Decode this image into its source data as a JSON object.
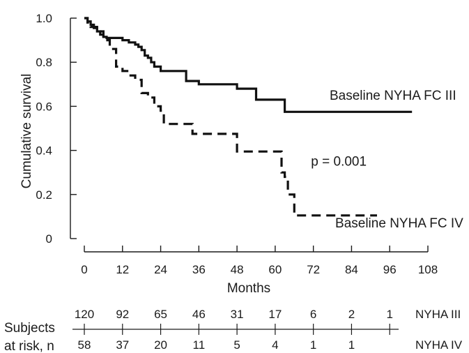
{
  "chart_data": {
    "type": "line",
    "subtype": "kaplan-meier-step",
    "title": "",
    "xlabel": "Months",
    "ylabel": "Cumulative survival",
    "xlim": [
      0,
      108
    ],
    "ylim": [
      0,
      1.0
    ],
    "xticks": [
      "0",
      "12",
      "24",
      "36",
      "48",
      "60",
      "72",
      "84",
      "96",
      "108"
    ],
    "yticks": [
      "0",
      "0.2",
      "0.4",
      "0.6",
      "0.8",
      "1.0"
    ],
    "grid": false,
    "legend": "none",
    "series": [
      {
        "name": "Baseline NYHA FC III",
        "style": "solid",
        "color": "#111111",
        "x": [
          0,
          1,
          2,
          3,
          4,
          5,
          6,
          7,
          12,
          14,
          16,
          17,
          18,
          19,
          20,
          21,
          22,
          24,
          32,
          36,
          42,
          48,
          54,
          63,
          103
        ],
        "y": [
          1.0,
          0.985,
          0.97,
          0.955,
          0.94,
          0.925,
          0.915,
          0.91,
          0.9,
          0.89,
          0.88,
          0.87,
          0.855,
          0.83,
          0.82,
          0.8,
          0.78,
          0.76,
          0.715,
          0.7,
          0.7,
          0.68,
          0.63,
          0.575,
          0.575
        ]
      },
      {
        "name": "Baseline NYHA FC IV",
        "style": "dashed",
        "color": "#111111",
        "x": [
          0,
          1,
          2,
          4,
          6,
          8,
          10,
          12,
          14,
          16,
          18,
          20,
          22,
          24,
          25,
          30,
          34,
          48,
          50,
          62,
          63,
          64,
          66,
          92
        ],
        "y": [
          1.0,
          0.98,
          0.96,
          0.94,
          0.9,
          0.86,
          0.78,
          0.76,
          0.74,
          0.72,
          0.66,
          0.64,
          0.6,
          0.58,
          0.52,
          0.52,
          0.475,
          0.395,
          0.395,
          0.3,
          0.28,
          0.2,
          0.105,
          0.105
        ]
      }
    ],
    "annotations": [
      {
        "text": "Baseline NYHA FC III",
        "x": 97,
        "y": 0.63
      },
      {
        "text": "Baseline NYHA FC IV",
        "x": 99,
        "y": 0.05
      },
      {
        "text": "p = 0.001",
        "x": 80,
        "y": 0.33
      }
    ],
    "risk_table": {
      "label_line1": "Subjects",
      "label_line2": "at risk, n",
      "times": [
        0,
        12,
        24,
        36,
        48,
        60,
        72,
        84,
        96
      ],
      "rows": [
        {
          "name": "NYHA III",
          "values": [
            "120",
            "92",
            "65",
            "46",
            "31",
            "17",
            "6",
            "2",
            "1"
          ]
        },
        {
          "name": "NYHA IV",
          "values": [
            "58",
            "37",
            "20",
            "11",
            "5",
            "4",
            "1",
            "1",
            ""
          ]
        }
      ]
    }
  }
}
